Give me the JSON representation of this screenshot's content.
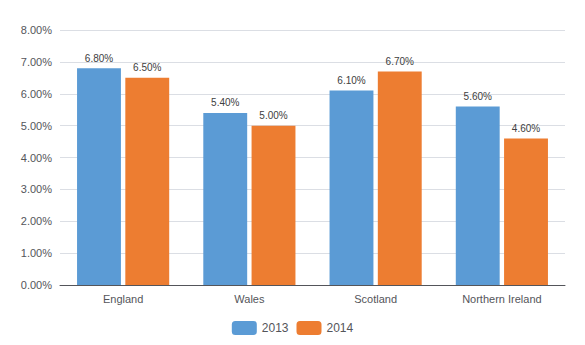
{
  "chart_data": {
    "type": "bar",
    "categories": [
      "England",
      "Wales",
      "Scotland",
      "Northern Ireland"
    ],
    "series": [
      {
        "name": "2013",
        "color": "#5b9bd5",
        "values": [
          0.068,
          0.054,
          0.061,
          0.056
        ],
        "value_labels": [
          "6.80%",
          "5.40%",
          "6.10%",
          "5.60%"
        ]
      },
      {
        "name": "2014",
        "color": "#ed7d31",
        "values": [
          0.065,
          0.05,
          0.067,
          0.046
        ],
        "value_labels": [
          "6.50%",
          "5.00%",
          "6.70%",
          "4.60%"
        ]
      }
    ],
    "ylim": [
      0,
      0.08
    ],
    "yticks": [
      {
        "value": 0.0,
        "label": "0.00%"
      },
      {
        "value": 0.01,
        "label": "1.00%"
      },
      {
        "value": 0.02,
        "label": "2.00%"
      },
      {
        "value": 0.03,
        "label": "3.00%"
      },
      {
        "value": 0.04,
        "label": "4.00%"
      },
      {
        "value": 0.05,
        "label": "5.00%"
      },
      {
        "value": 0.06,
        "label": "6.00%"
      },
      {
        "value": 0.07,
        "label": "7.00%"
      },
      {
        "value": 0.08,
        "label": "8.00%"
      }
    ],
    "grid": true,
    "legend": "bottom",
    "data_labels": true
  }
}
